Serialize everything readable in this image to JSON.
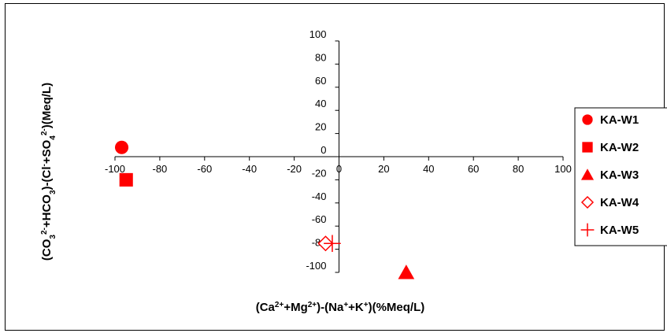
{
  "chart_data": {
    "type": "scatter",
    "title": "",
    "xlabel": "(Ca2++Mg2+)-(Na++K+)(%Meq/L)",
    "ylabel": "(CO32-+HCO3)-(Cl-+SO42-)(Meq/L)",
    "xlim": [
      -100,
      100
    ],
    "ylim": [
      -100,
      100
    ],
    "x_ticks": [
      -100,
      -80,
      -60,
      -40,
      -20,
      0,
      20,
      40,
      60,
      80,
      100
    ],
    "x_tick_labels": [
      "-100",
      "-80",
      "-60",
      "-40",
      "-20",
      "0",
      "20",
      "40",
      "60",
      "80",
      "100"
    ],
    "y_ticks": [
      100,
      80,
      60,
      40,
      20,
      0,
      -20,
      -40,
      -60,
      -80,
      -100
    ],
    "y_tick_labels": [
      "100",
      "80",
      "60",
      "40",
      "20",
      "0",
      "-20",
      "-40",
      "-60",
      "-80",
      "-100"
    ],
    "grid": false,
    "legend_position": "right",
    "series": [
      {
        "name": "KA-W1",
        "marker": "circle",
        "x": [
          -97
        ],
        "y": [
          8
        ]
      },
      {
        "name": "KA-W2",
        "marker": "square",
        "x": [
          -95
        ],
        "y": [
          -20
        ]
      },
      {
        "name": "KA-W3",
        "marker": "triangle",
        "x": [
          30
        ],
        "y": [
          -100
        ]
      },
      {
        "name": "KA-W4",
        "marker": "diamond-open",
        "x": [
          -6
        ],
        "y": [
          -75
        ]
      },
      {
        "name": "KA-W5",
        "marker": "plus",
        "x": [
          -3
        ],
        "y": [
          -75
        ]
      }
    ],
    "marker_color": "#ff0000"
  }
}
